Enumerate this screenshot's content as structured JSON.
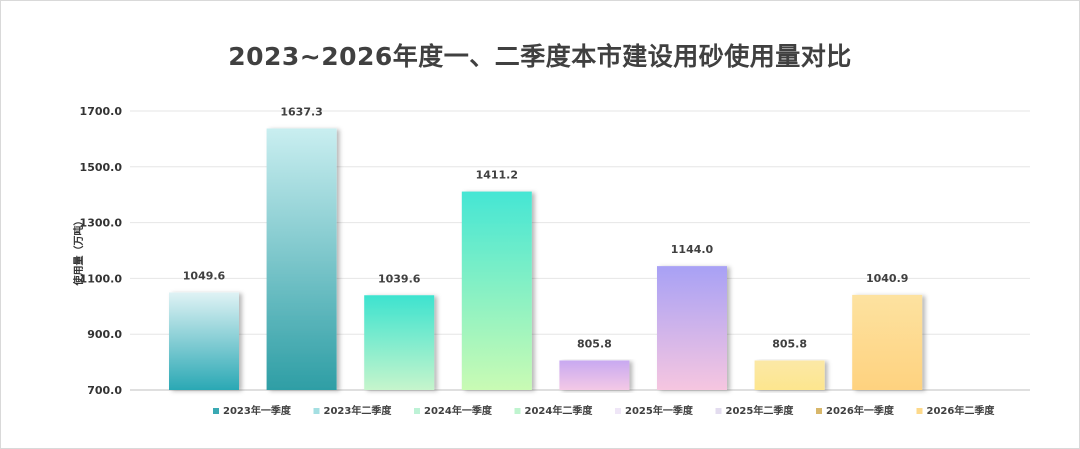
{
  "chart_data": {
    "type": "bar",
    "title": "2023~2026年度一、二季度本市建设用砂使用量对比",
    "ylabel": "使用量（万吨）",
    "xlabel": "",
    "ylim": [
      700,
      1700
    ],
    "yticks": [
      "700.0",
      "900.0",
      "1100.0",
      "1300.0",
      "1500.0",
      "1700.0"
    ],
    "grid": true,
    "legend_position": "bottom",
    "categories": [
      "2023年一季度",
      "2023年二季度",
      "2024年一季度",
      "2024年二季度",
      "2025年一季度",
      "2025年二季度",
      "2026年一季度",
      "2026年二季度"
    ],
    "values": [
      1049.6,
      1637.3,
      1039.6,
      1411.2,
      805.8,
      1144.0,
      805.8,
      1040.9
    ],
    "value_labels": [
      "1049.6",
      "1637.3",
      "1039.6",
      "1411.2",
      "805.8",
      "1144.0",
      "805.8",
      "1040.9"
    ],
    "colors": [
      {
        "top": "#dff2f4",
        "bottom": "#2aa8b4",
        "swatch": "#3aa9b3"
      },
      {
        "top": "#c9eef0",
        "bottom": "#2e9ea5",
        "swatch": "#a4dfe2"
      },
      {
        "top": "#3de3cf",
        "bottom": "#c6f5cc",
        "swatch": "#bdf2d6"
      },
      {
        "top": "#45e6d4",
        "bottom": "#c9fbb4",
        "swatch": "#bff4cf"
      },
      {
        "top": "#c8a9f1",
        "bottom": "#f4c9e6",
        "swatch": "#efe6f7"
      },
      {
        "top": "#a8a1f5",
        "bottom": "#f6c6e0",
        "swatch": "#e3dcef"
      },
      {
        "top": "#fbe8a6",
        "bottom": "#fde68e",
        "swatch": "#d8b76a"
      },
      {
        "top": "#fde2a0",
        "bottom": "#fed27f",
        "swatch": "#fdd98a"
      }
    ]
  }
}
